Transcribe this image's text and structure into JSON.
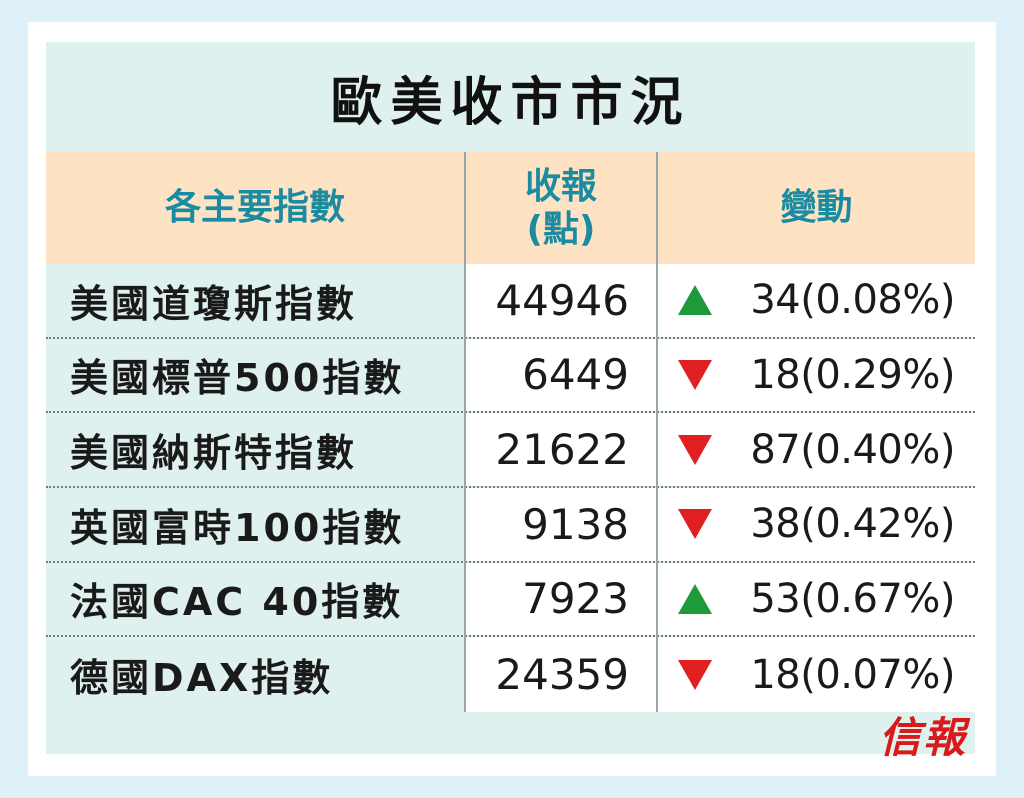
{
  "title": "歐美收市市況",
  "headers": {
    "name": "各主要指數",
    "close_line1": "收報",
    "close_line2": "(點)",
    "change": "變動"
  },
  "rows": [
    {
      "name": "美國道瓊斯指數",
      "close": "44946",
      "direction": "up",
      "change": "34(0.08%)"
    },
    {
      "name": "美國標普500指數",
      "close": "6449",
      "direction": "down",
      "change": "18(0.29%)"
    },
    {
      "name": "美國納斯特指數",
      "close": "21622",
      "direction": "down",
      "change": "87(0.40%)"
    },
    {
      "name": "英國富時100指數",
      "close": "9138",
      "direction": "down",
      "change": "38(0.42%)"
    },
    {
      "name": "法國CAC 40指數",
      "close": "7923",
      "direction": "up",
      "change": "53(0.67%)"
    },
    {
      "name": "德國DAX指數",
      "close": "24359",
      "direction": "down",
      "change": "18(0.07%)"
    }
  ],
  "colors": {
    "up": "#1e9a3a",
    "down": "#e02020",
    "header_text": "#1a8ba0",
    "header_bg": "#fde2c4"
  },
  "logo": "信報"
}
